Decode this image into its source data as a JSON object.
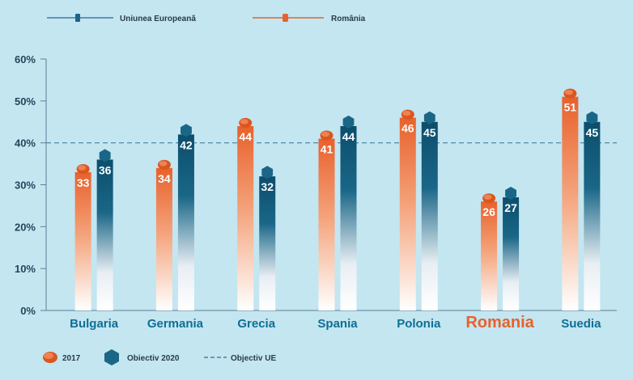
{
  "chart_data": {
    "type": "bar",
    "categories": [
      "Bulgaria",
      "Germania",
      "Grecia",
      "Spania",
      "Polonia",
      "Romania",
      "Suedia"
    ],
    "highlight_category": "Romania",
    "series": [
      {
        "name": "2017",
        "values": [
          33,
          34,
          44,
          41,
          46,
          26,
          51
        ],
        "color": "#e8612c"
      },
      {
        "name": "Obiectiv 2020",
        "values": [
          36,
          42,
          32,
          44,
          45,
          27,
          45
        ],
        "color": "#1a6687"
      }
    ],
    "y_ticks": [
      "0%",
      "10%",
      "20%",
      "30%",
      "40%",
      "50%",
      "60%"
    ],
    "ylim": [
      0,
      60
    ],
    "reference_line": {
      "value": 40,
      "label": "Objectiv UE",
      "style": "dashed",
      "color": "#4a7fa0"
    },
    "top_legend": [
      {
        "label": "Uniunea Europeană",
        "color": "#1a6687"
      },
      {
        "label": "România",
        "color": "#e8612c"
      }
    ],
    "bottom_legend": [
      {
        "label": "2017",
        "marker": "orange-bead-icon"
      },
      {
        "label": "Obiectiv 2020",
        "marker": "blue-hexagon-icon"
      },
      {
        "label": "Objectiv UE",
        "marker": "dashed-line-icon"
      }
    ],
    "background_color": "#c3e6f1"
  }
}
